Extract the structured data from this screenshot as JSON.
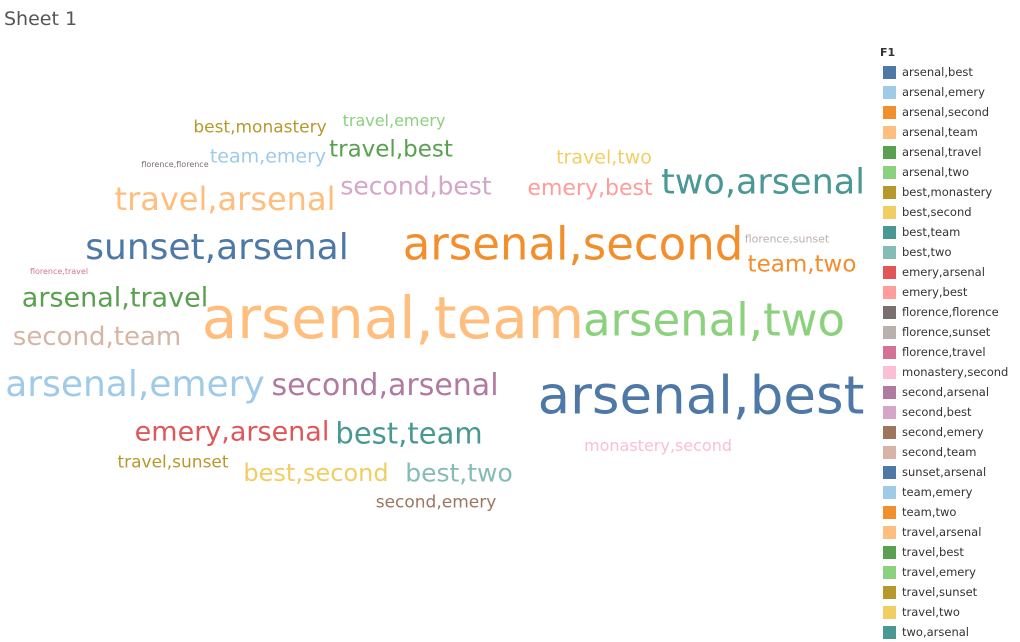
{
  "sheet_title": "Sheet 1",
  "legend": {
    "title": "F1",
    "items": [
      {
        "label": "arsenal,best",
        "color": "#4e79a7"
      },
      {
        "label": "arsenal,emery",
        "color": "#a0cbe8"
      },
      {
        "label": "arsenal,second",
        "color": "#f28e2b"
      },
      {
        "label": "arsenal,team",
        "color": "#ffbe7d"
      },
      {
        "label": "arsenal,travel",
        "color": "#59a14f"
      },
      {
        "label": "arsenal,two",
        "color": "#8cd17d"
      },
      {
        "label": "best,monastery",
        "color": "#b6992d"
      },
      {
        "label": "best,second",
        "color": "#f1ce63"
      },
      {
        "label": "best,team",
        "color": "#499894"
      },
      {
        "label": "best,two",
        "color": "#86bcb6"
      },
      {
        "label": "emery,arsenal",
        "color": "#e15759"
      },
      {
        "label": "emery,best",
        "color": "#ff9d9a"
      },
      {
        "label": "florence,florence",
        "color": "#79706e"
      },
      {
        "label": "florence,sunset",
        "color": "#bab0ac"
      },
      {
        "label": "florence,travel",
        "color": "#d37295"
      },
      {
        "label": "monastery,second",
        "color": "#fabfd2"
      },
      {
        "label": "second,arsenal",
        "color": "#b07aa1"
      },
      {
        "label": "second,best",
        "color": "#d4a6c8"
      },
      {
        "label": "second,emery",
        "color": "#9d7660"
      },
      {
        "label": "second,team",
        "color": "#d7b5a6"
      },
      {
        "label": "sunset,arsenal",
        "color": "#4e79a7"
      },
      {
        "label": "team,emery",
        "color": "#a0cbe8"
      },
      {
        "label": "team,two",
        "color": "#f28e2b"
      },
      {
        "label": "travel,arsenal",
        "color": "#ffbe7d"
      },
      {
        "label": "travel,best",
        "color": "#59a14f"
      },
      {
        "label": "travel,emery",
        "color": "#8cd17d"
      },
      {
        "label": "travel,sunset",
        "color": "#b6992d"
      },
      {
        "label": "travel,two",
        "color": "#f1ce63"
      },
      {
        "label": "two,arsenal",
        "color": "#499894"
      }
    ]
  },
  "chart_data": {
    "type": "word_cloud",
    "legend_placement": "right",
    "words": [
      {
        "text": "arsenal,team",
        "color": "#ffbe7d",
        "weight": 58
      },
      {
        "text": "arsenal,best",
        "color": "#4e79a7",
        "weight": 53
      },
      {
        "text": "arsenal,second",
        "color": "#f28e2b",
        "weight": 45
      },
      {
        "text": "arsenal,two",
        "color": "#8cd17d",
        "weight": 45
      },
      {
        "text": "sunset,arsenal",
        "color": "#4e79a7",
        "weight": 36
      },
      {
        "text": "arsenal,emery",
        "color": "#a0cbe8",
        "weight": 36
      },
      {
        "text": "two,arsenal",
        "color": "#499894",
        "weight": 35
      },
      {
        "text": "travel,arsenal",
        "color": "#ffbe7d",
        "weight": 32
      },
      {
        "text": "second,arsenal",
        "color": "#b07aa1",
        "weight": 30
      },
      {
        "text": "best,team",
        "color": "#499894",
        "weight": 29
      },
      {
        "text": "arsenal,travel",
        "color": "#59a14f",
        "weight": 27
      },
      {
        "text": "emery,arsenal",
        "color": "#e15759",
        "weight": 27
      },
      {
        "text": "second,team",
        "color": "#d7b5a6",
        "weight": 26
      },
      {
        "text": "second,best",
        "color": "#d4a6c8",
        "weight": 25
      },
      {
        "text": "best,two",
        "color": "#86bcb6",
        "weight": 25
      },
      {
        "text": "best,second",
        "color": "#f1ce63",
        "weight": 24
      },
      {
        "text": "travel,best",
        "color": "#59a14f",
        "weight": 23
      },
      {
        "text": "team,two",
        "color": "#f28e2b",
        "weight": 23
      },
      {
        "text": "emery,best",
        "color": "#ff9d9a",
        "weight": 22
      },
      {
        "text": "travel,two",
        "color": "#f1ce63",
        "weight": 19
      },
      {
        "text": "team,emery",
        "color": "#a0cbe8",
        "weight": 19
      },
      {
        "text": "best,monastery",
        "color": "#b6992d",
        "weight": 17
      },
      {
        "text": "travel,sunset",
        "color": "#b6992d",
        "weight": 17
      },
      {
        "text": "second,emery",
        "color": "#9d7660",
        "weight": 17
      },
      {
        "text": "travel,emery",
        "color": "#8cd17d",
        "weight": 16
      },
      {
        "text": "monastery,second",
        "color": "#fabfd2",
        "weight": 16
      },
      {
        "text": "florence,sunset",
        "color": "#bab0ac",
        "weight": 11
      },
      {
        "text": "florence,florence",
        "color": "#79706e",
        "weight": 8
      },
      {
        "text": "florence,travel",
        "color": "#d37295",
        "weight": 8
      }
    ]
  }
}
